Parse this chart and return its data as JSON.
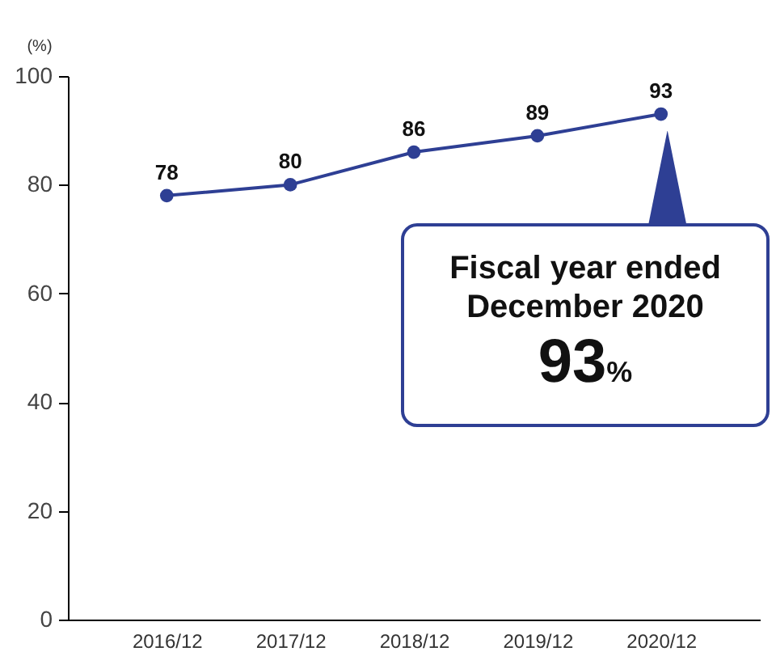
{
  "chart_data": {
    "type": "line",
    "ylabel": "(%)",
    "categories": [
      "2016/12",
      "2017/12",
      "2018/12",
      "2019/12",
      "2020/12"
    ],
    "series": [
      {
        "color": "#2e3f94",
        "values": [
          78,
          80,
          86,
          89,
          93
        ]
      }
    ],
    "ylim": [
      0,
      100
    ],
    "yticks": [
      0,
      20,
      40,
      60,
      80,
      100
    ],
    "data_labels": true,
    "marker": "circle",
    "grid": false,
    "annotations": [
      "Fiscal year ended\nDecember 2020",
      "93%"
    ]
  }
}
